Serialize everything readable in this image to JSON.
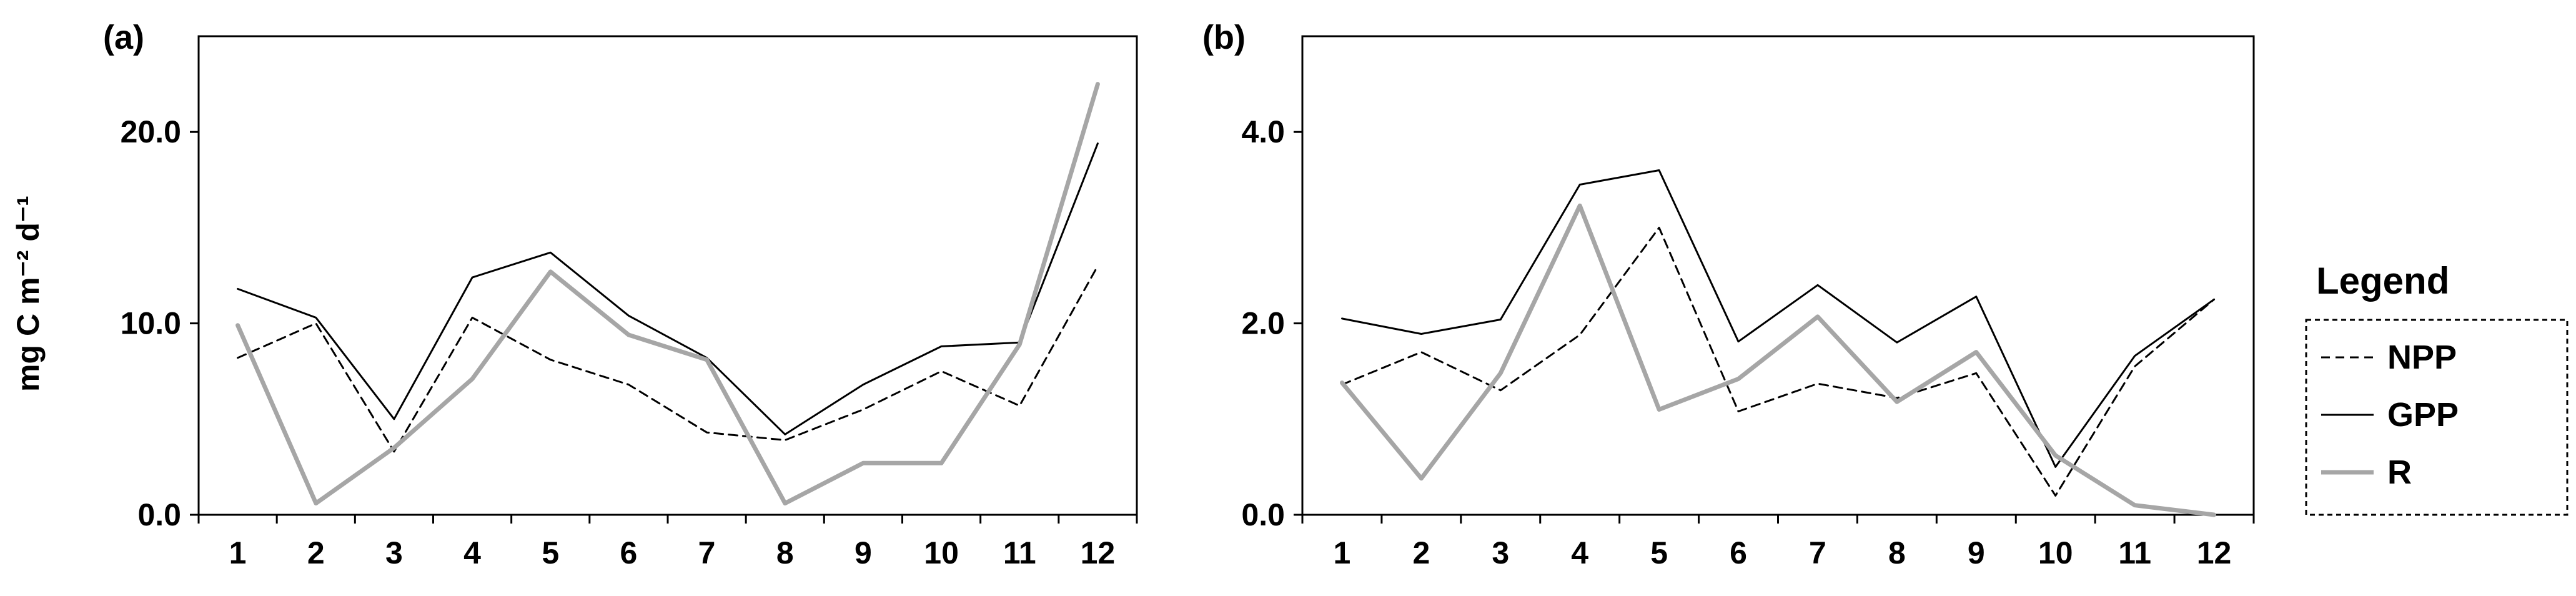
{
  "chart_data": [
    {
      "type": "line",
      "panel_label": "(a)",
      "ylabel": "mg C m⁻² d⁻¹",
      "categories": [
        "1",
        "2",
        "3",
        "4",
        "5",
        "6",
        "7",
        "8",
        "9",
        "10",
        "11",
        "12"
      ],
      "ylim": [
        0,
        25
      ],
      "yticks": [
        "0.0",
        "10.0",
        "20.0"
      ],
      "series": [
        {
          "name": "NPP",
          "color": "#000000",
          "style": "dashed",
          "values": [
            8.2,
            10.0,
            3.3,
            10.3,
            8.1,
            6.8,
            4.3,
            3.9,
            5.5,
            7.5,
            5.7,
            13.0
          ]
        },
        {
          "name": "GPP",
          "color": "#000000",
          "style": "solid",
          "values": [
            11.8,
            10.3,
            5.0,
            12.4,
            13.7,
            10.4,
            8.2,
            4.2,
            6.8,
            8.8,
            9.0,
            19.4
          ]
        },
        {
          "name": "R",
          "color": "#a6a6a6",
          "style": "solid-thick",
          "values": [
            9.9,
            0.6,
            3.5,
            7.1,
            12.7,
            9.4,
            8.1,
            0.6,
            2.7,
            2.7,
            8.9,
            22.5
          ]
        }
      ]
    },
    {
      "type": "line",
      "panel_label": "(b)",
      "ylabel": "",
      "categories": [
        "1",
        "2",
        "3",
        "4",
        "5",
        "6",
        "7",
        "8",
        "9",
        "10",
        "11",
        "12"
      ],
      "ylim": [
        0,
        5
      ],
      "yticks": [
        "0.0",
        "2.0",
        "4.0"
      ],
      "series": [
        {
          "name": "NPP",
          "color": "#000000",
          "style": "dashed",
          "values": [
            1.36,
            1.7,
            1.3,
            1.88,
            3.0,
            1.08,
            1.37,
            1.22,
            1.48,
            0.2,
            1.55,
            2.25
          ]
        },
        {
          "name": "GPP",
          "color": "#000000",
          "style": "solid",
          "values": [
            2.05,
            1.89,
            2.04,
            3.45,
            3.6,
            1.81,
            2.4,
            1.8,
            2.28,
            0.5,
            1.66,
            2.25
          ]
        },
        {
          "name": "R",
          "color": "#a6a6a6",
          "style": "solid-thick",
          "values": [
            1.38,
            0.38,
            1.48,
            3.23,
            1.1,
            1.42,
            2.07,
            1.18,
            1.7,
            0.62,
            0.1,
            0.0
          ]
        }
      ]
    }
  ],
  "legend": {
    "title": "Legend",
    "items": [
      {
        "label": "NPP",
        "style": "dashed",
        "color": "#000000"
      },
      {
        "label": "GPP",
        "style": "solid",
        "color": "#000000"
      },
      {
        "label": "R",
        "style": "solid-thick",
        "color": "#a6a6a6"
      }
    ]
  }
}
